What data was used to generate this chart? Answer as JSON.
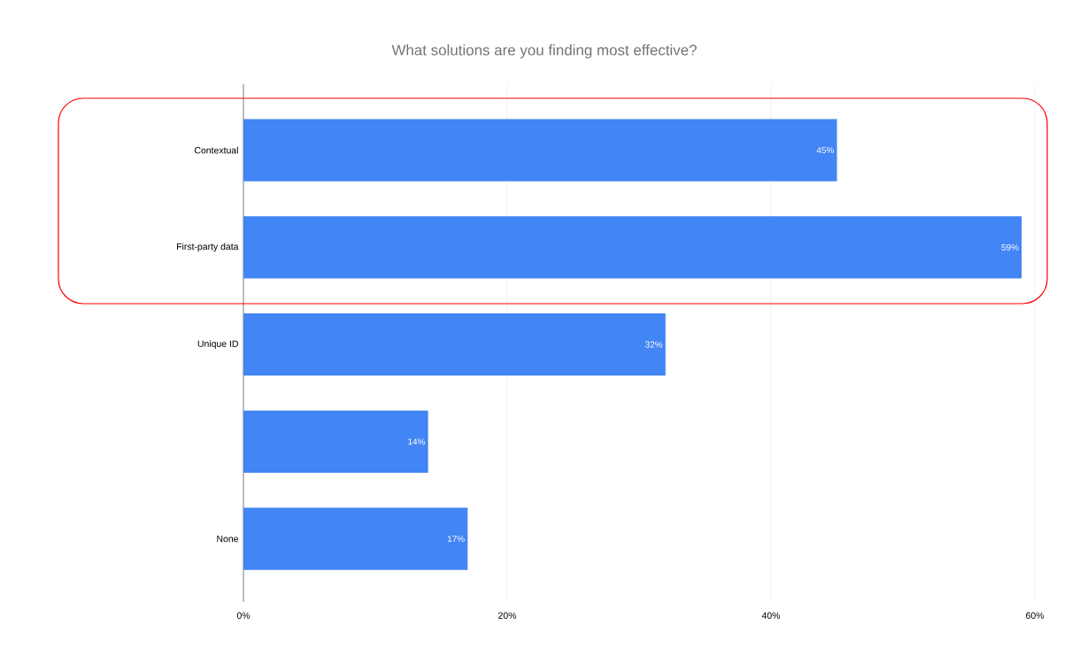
{
  "chart_data": {
    "type": "bar",
    "orientation": "horizontal",
    "title": "What solutions are you finding most effective?",
    "categories": [
      "Contextual",
      "First-party data",
      "Unique ID",
      null,
      "None"
    ],
    "values": [
      45,
      59,
      32,
      14,
      17
    ],
    "value_labels": [
      "45%",
      "59%",
      "32%",
      "14%",
      "17%"
    ],
    "color": "#4285f4",
    "xlim": [
      0,
      60
    ],
    "xticks": [
      {
        "value": 0,
        "label": "0%"
      },
      {
        "value": 20,
        "label": "20%"
      },
      {
        "value": 40,
        "label": "40%"
      },
      {
        "value": 60,
        "label": "60%"
      }
    ],
    "grid": "x"
  }
}
